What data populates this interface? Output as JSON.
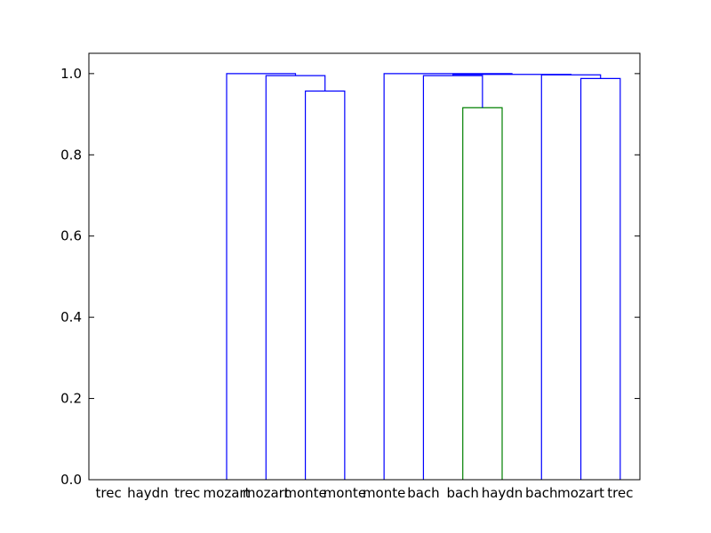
{
  "chart_data": {
    "type": "dendrogram",
    "title": "",
    "xlabel": "",
    "ylabel": "",
    "ylim": [
      0,
      1.05
    ],
    "yticks": [
      "0.0",
      "0.2",
      "0.4",
      "0.6",
      "0.8",
      "1.0"
    ],
    "leaves": [
      "trec",
      "haydn",
      "trec",
      "mozart",
      "mozart",
      "monte",
      "monte",
      "monte",
      "bach",
      "bach",
      "haydn",
      "bach",
      "mozart",
      "trec"
    ],
    "links": [
      {
        "left": 5,
        "right": 6,
        "height": 0.957,
        "color": "#0000ff"
      },
      {
        "left": 9,
        "right": 10,
        "height": 0.916,
        "color": "#008000"
      },
      {
        "left": 12,
        "right": 13,
        "height": 0.988,
        "color": "#0000ff"
      },
      {
        "left": 4,
        "right": "5-6",
        "height": 0.995,
        "color": "#0000ff"
      },
      {
        "left": 8,
        "right": "9-10",
        "height": 0.995,
        "color": "#0000ff"
      },
      {
        "left": 11,
        "right": "12-13",
        "height": 0.997,
        "color": "#0000ff"
      },
      {
        "left": "8-10",
        "right": "11-13",
        "height": 0.998,
        "color": "#0000ff"
      },
      {
        "left": 0,
        "right": "1-13",
        "height": 1.0,
        "color": "#0000ff"
      },
      {
        "left": 1,
        "right": "2-13",
        "height": 1.0,
        "color": "#0000ff"
      },
      {
        "left": 2,
        "right": "3-13",
        "height": 1.0,
        "color": "#0000ff"
      },
      {
        "left": 3,
        "right": "4-6",
        "height": 1.0,
        "color": "#0000ff"
      },
      {
        "left": "3-6",
        "right": "7-13",
        "height": 1.0,
        "color": "#0000ff"
      },
      {
        "left": 7,
        "right": "8-13",
        "height": 1.0,
        "color": "#0000ff"
      }
    ],
    "colors": {
      "default_link": "#0000ff",
      "cluster_link": "#008000",
      "axes": "#000000"
    }
  }
}
